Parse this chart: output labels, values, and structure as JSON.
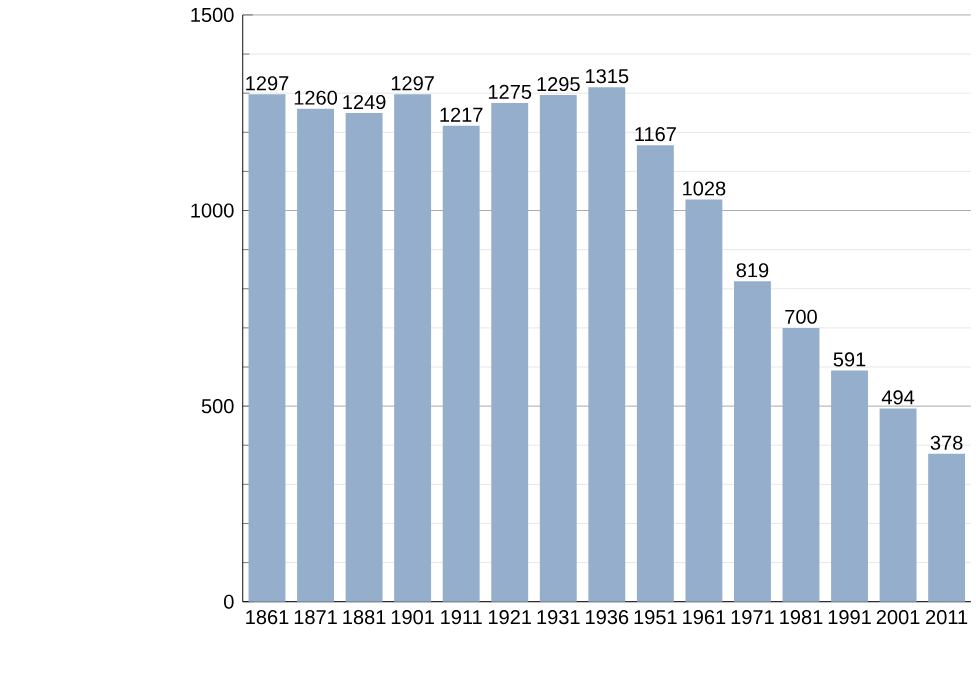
{
  "chart_data": {
    "type": "bar",
    "categories": [
      "1861",
      "1871",
      "1881",
      "1901",
      "1911",
      "1921",
      "1931",
      "1936",
      "1951",
      "1961",
      "1971",
      "1981",
      "1991",
      "2001",
      "2011"
    ],
    "values": [
      1297,
      1260,
      1249,
      1297,
      1217,
      1275,
      1295,
      1315,
      1167,
      1028,
      819,
      700,
      591,
      494,
      378
    ],
    "color": "#94aecb",
    "ylim": [
      0,
      1500
    ],
    "yticks": [
      0,
      500,
      1000,
      1500
    ],
    "grid": "y",
    "data_labels": true
  }
}
